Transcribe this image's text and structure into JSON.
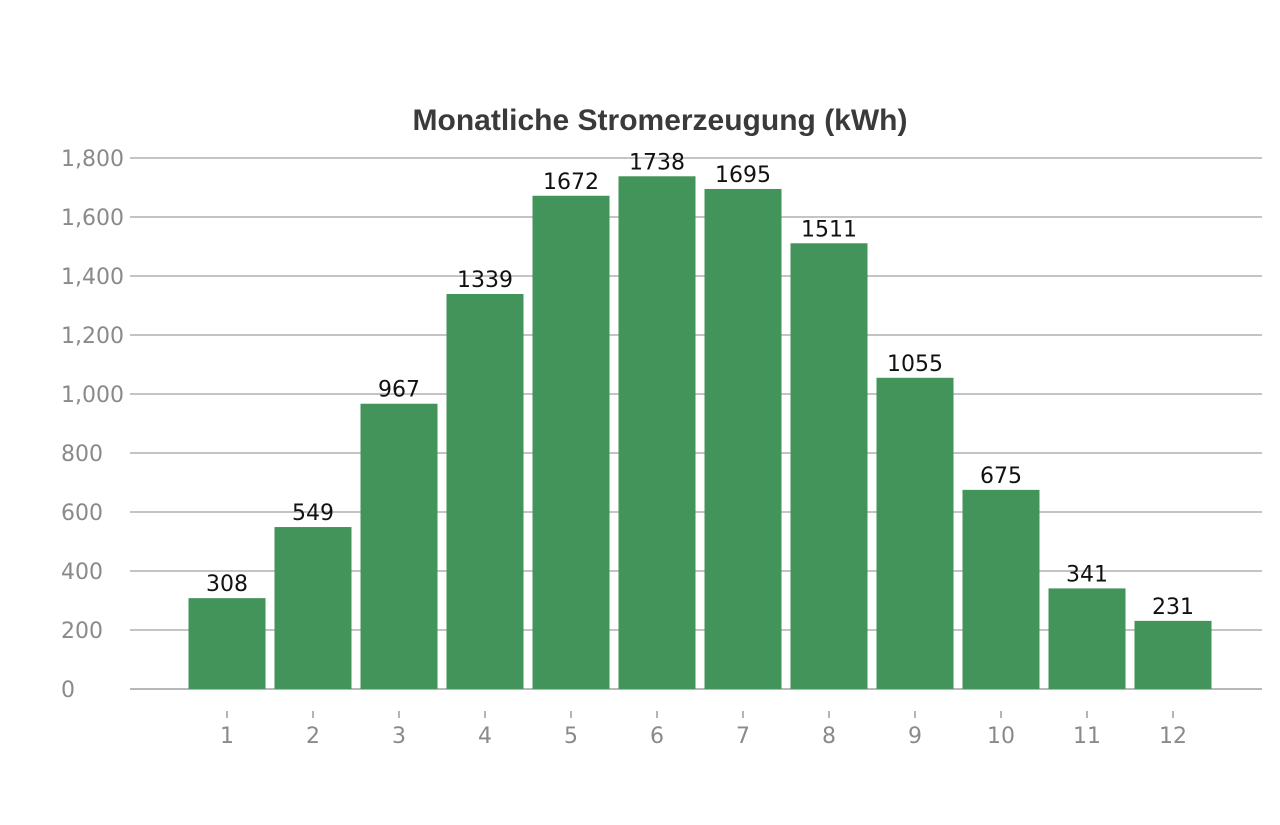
{
  "chart_data": {
    "type": "bar",
    "title": "Monatliche Stromerzeugung (kWh)",
    "xlabel": "",
    "ylabel": "",
    "categories": [
      "1",
      "2",
      "3",
      "4",
      "5",
      "6",
      "7",
      "8",
      "9",
      "10",
      "11",
      "12"
    ],
    "values": [
      308,
      549,
      967,
      1339,
      1672,
      1738,
      1695,
      1511,
      1055,
      675,
      341,
      231
    ],
    "value_labels": [
      "308",
      "549",
      "967",
      "1339",
      "1672",
      "1738",
      "1695",
      "1511",
      "1055",
      "675",
      "341",
      "231"
    ],
    "ylim": [
      0,
      1800
    ],
    "y_ticks": [
      0,
      200,
      400,
      600,
      800,
      1000,
      1200,
      1400,
      1600,
      1800
    ],
    "y_tick_labels": [
      "0",
      "200",
      "400",
      "600",
      "800",
      "1,000",
      "1,200",
      "1,400",
      "1,600",
      "1,800"
    ],
    "grid": true,
    "legend": "none",
    "bar_color": "#43945a"
  }
}
